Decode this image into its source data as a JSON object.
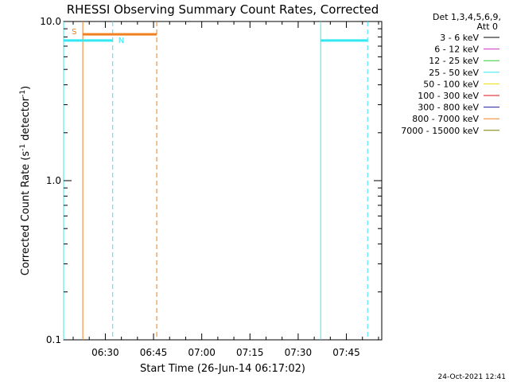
{
  "chart_data": {
    "type": "line",
    "title": "RHESSI Observing Summary Count Rates, Corrected",
    "xlabel": "Start Time (26-Jun-14 06:17:02)",
    "ylabel_main": "Corrected Count Rate (s",
    "ylabel_sup1": "-1",
    "ylabel_mid": " detector",
    "ylabel_sup2": "-1",
    "ylabel_end": ")",
    "yscale": "log",
    "ylim": [
      0.1,
      10.0
    ],
    "y_ticks": [
      {
        "value": 0.1,
        "label": "0.1"
      },
      {
        "value": 1.0,
        "label": "1.0"
      },
      {
        "value": 10.0,
        "label": "10.0"
      }
    ],
    "xlim_minutes": [
      377.03,
      476.0
    ],
    "x_ticks": [
      {
        "value": 390,
        "label": "06:30"
      },
      {
        "value": 405,
        "label": "06:45"
      },
      {
        "value": 420,
        "label": "07:00"
      },
      {
        "value": 435,
        "label": "07:15"
      },
      {
        "value": 450,
        "label": "07:30"
      },
      {
        "value": 465,
        "label": "07:45"
      }
    ],
    "grid": false,
    "legend_position": "right",
    "legend_header": [
      "Det 1,3,4,5,6,9,",
      "Att 0"
    ],
    "series": [
      {
        "name": "3 - 6 keV",
        "color": "#000000"
      },
      {
        "name": "6 - 12 keV",
        "color": "#cc33cc"
      },
      {
        "name": "12 - 25 keV",
        "color": "#33cc33"
      },
      {
        "name": "25 - 50 keV",
        "color": "#33e8f0"
      },
      {
        "name": "50 - 100 keV",
        "color": "#e8e000"
      },
      {
        "name": "100 - 300 keV",
        "color": "#dd1111"
      },
      {
        "name": "300 - 800 keV",
        "color": "#1c1c9c"
      },
      {
        "name": "800 - 7000 keV",
        "color": "#f08020"
      },
      {
        "name": "7000 - 15000 keV",
        "color": "#7a7a00"
      }
    ],
    "flag_bars": [
      {
        "label": "S",
        "color": "#f08020",
        "x_start": 383.0,
        "x_end": 406.0,
        "y": 8.3
      },
      {
        "label": "N",
        "color": "#33e8f0",
        "x_start": 377.03,
        "x_end": 392.3,
        "y": 7.6
      },
      {
        "label": "",
        "color": "#33e8f0",
        "x_start": 457.0,
        "x_end": 471.6,
        "y": 7.6
      }
    ],
    "markers": [
      {
        "x": 377.03,
        "color": "#33e8f0",
        "style": "solid"
      },
      {
        "x": 392.3,
        "color": "#33e8f0",
        "style": "dashed"
      },
      {
        "x": 383.0,
        "color": "#f08020",
        "style": "solid"
      },
      {
        "x": 406.0,
        "color": "#f08020",
        "style": "dashed"
      },
      {
        "x": 457.0,
        "color": "#33e8f0",
        "style": "solid"
      },
      {
        "x": 471.6,
        "color": "#33e8f0",
        "style": "dashed"
      }
    ]
  },
  "timestamp": "24-Oct-2021 12:41"
}
